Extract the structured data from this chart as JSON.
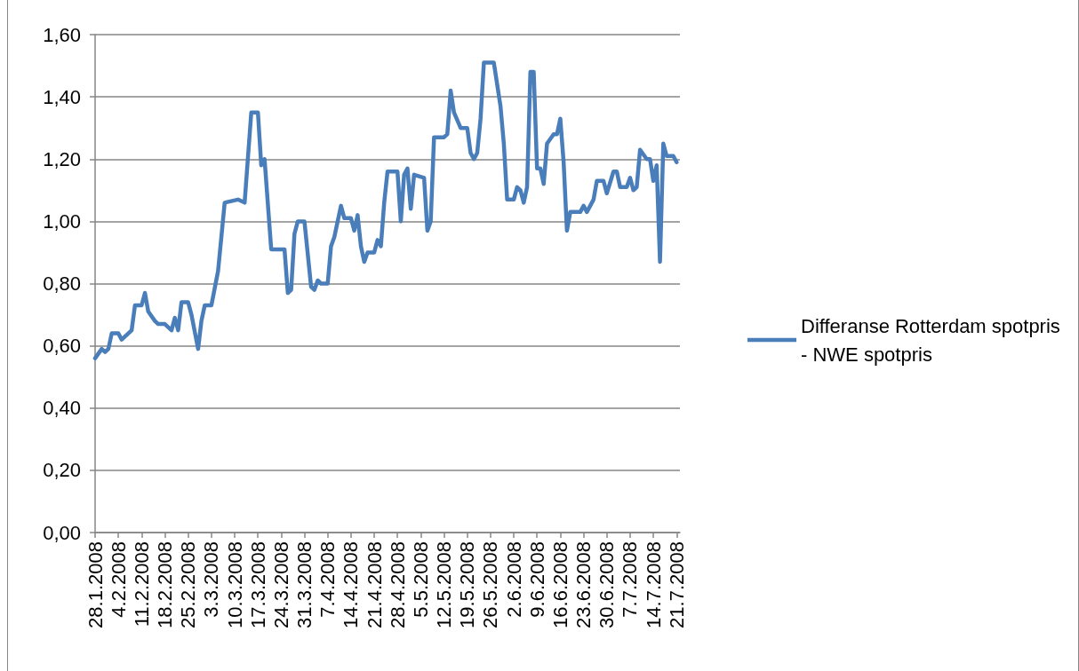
{
  "chart_data": {
    "type": "line",
    "x": [
      "2008-01-28",
      "2008-01-30",
      "2008-01-31",
      "2008-02-01",
      "2008-02-02",
      "2008-02-04",
      "2008-02-05",
      "2008-02-08",
      "2008-02-09",
      "2008-02-11",
      "2008-02-12",
      "2008-02-13",
      "2008-02-15",
      "2008-02-16",
      "2008-02-18",
      "2008-02-20",
      "2008-02-21",
      "2008-02-22",
      "2008-02-23",
      "2008-02-25",
      "2008-02-26",
      "2008-02-28",
      "2008-02-29",
      "2008-03-01",
      "2008-03-03",
      "2008-03-05",
      "2008-03-07",
      "2008-03-11",
      "2008-03-13",
      "2008-03-15",
      "2008-03-17",
      "2008-03-18",
      "2008-03-19",
      "2008-03-21",
      "2008-03-25",
      "2008-03-26",
      "2008-03-27",
      "2008-03-28",
      "2008-03-29",
      "2008-03-31",
      "2008-04-02",
      "2008-04-03",
      "2008-04-04",
      "2008-04-05",
      "2008-04-07",
      "2008-04-08",
      "2008-04-09",
      "2008-04-11",
      "2008-04-12",
      "2008-04-14",
      "2008-04-15",
      "2008-04-16",
      "2008-04-17",
      "2008-04-18",
      "2008-04-19",
      "2008-04-21",
      "2008-04-22",
      "2008-04-23",
      "2008-04-24",
      "2008-04-25",
      "2008-04-28",
      "2008-04-29",
      "2008-04-30",
      "2008-05-01",
      "2008-05-02",
      "2008-05-03",
      "2008-05-06",
      "2008-05-07",
      "2008-05-08",
      "2008-05-09",
      "2008-05-12",
      "2008-05-13",
      "2008-05-14",
      "2008-05-15",
      "2008-05-17",
      "2008-05-19",
      "2008-05-20",
      "2008-05-21",
      "2008-05-22",
      "2008-05-23",
      "2008-05-24",
      "2008-05-25",
      "2008-05-27",
      "2008-05-29",
      "2008-05-30",
      "2008-05-31",
      "2008-06-02",
      "2008-06-03",
      "2008-06-04",
      "2008-06-05",
      "2008-06-06",
      "2008-06-07",
      "2008-06-08",
      "2008-06-09",
      "2008-06-10",
      "2008-06-11",
      "2008-06-12",
      "2008-06-14",
      "2008-06-15",
      "2008-06-16",
      "2008-06-17",
      "2008-06-18",
      "2008-06-19",
      "2008-06-22",
      "2008-06-23",
      "2008-06-24",
      "2008-06-26",
      "2008-06-27",
      "2008-06-29",
      "2008-06-30",
      "2008-07-02",
      "2008-07-03",
      "2008-07-04",
      "2008-07-06",
      "2008-07-07",
      "2008-07-08",
      "2008-07-09",
      "2008-07-10",
      "2008-07-12",
      "2008-07-13",
      "2008-07-14",
      "2008-07-15",
      "2008-07-16",
      "2008-07-17",
      "2008-07-18",
      "2008-07-20",
      "2008-07-21"
    ],
    "series": [
      {
        "name": "Differanse Rotterdam spotpris - NWE spotpris",
        "color": "#4a7ebb",
        "values": [
          0.56,
          0.59,
          0.58,
          0.59,
          0.64,
          0.64,
          0.62,
          0.65,
          0.73,
          0.73,
          0.77,
          0.71,
          0.68,
          0.67,
          0.67,
          0.65,
          0.69,
          0.65,
          0.74,
          0.74,
          0.7,
          0.59,
          0.68,
          0.73,
          0.73,
          0.84,
          1.06,
          1.07,
          1.06,
          1.35,
          1.35,
          1.18,
          1.2,
          0.91,
          0.91,
          0.77,
          0.78,
          0.96,
          1.0,
          1.0,
          0.79,
          0.78,
          0.81,
          0.8,
          0.8,
          0.92,
          0.95,
          1.05,
          1.01,
          1.01,
          0.97,
          1.02,
          0.92,
          0.87,
          0.9,
          0.9,
          0.94,
          0.92,
          1.06,
          1.16,
          1.16,
          1.0,
          1.15,
          1.17,
          1.04,
          1.15,
          1.14,
          0.97,
          1.0,
          1.27,
          1.27,
          1.28,
          1.42,
          1.35,
          1.3,
          1.3,
          1.22,
          1.2,
          1.22,
          1.33,
          1.51,
          1.51,
          1.51,
          1.37,
          1.25,
          1.07,
          1.07,
          1.11,
          1.1,
          1.06,
          1.11,
          1.48,
          1.48,
          1.17,
          1.17,
          1.12,
          1.25,
          1.28,
          1.28,
          1.33,
          1.19,
          0.97,
          1.03,
          1.03,
          1.05,
          1.03,
          1.07,
          1.13,
          1.13,
          1.09,
          1.16,
          1.16,
          1.11,
          1.11,
          1.14,
          1.1,
          1.11,
          1.23,
          1.2,
          1.2,
          1.13,
          1.18,
          0.87,
          1.25,
          1.21,
          1.21,
          1.19
        ]
      }
    ],
    "xlim": [
      "2008-01-28",
      "2008-07-22"
    ],
    "xticks": [
      {
        "value": "2008-01-28",
        "label": "28.1.2008"
      },
      {
        "value": "2008-02-04",
        "label": "4.2.2008"
      },
      {
        "value": "2008-02-11",
        "label": "11.2.2008"
      },
      {
        "value": "2008-02-18",
        "label": "18.2.2008"
      },
      {
        "value": "2008-02-25",
        "label": "25.2.2008"
      },
      {
        "value": "2008-03-03",
        "label": "3.3.2008"
      },
      {
        "value": "2008-03-10",
        "label": "10.3.2008"
      },
      {
        "value": "2008-03-17",
        "label": "17.3.2008"
      },
      {
        "value": "2008-03-24",
        "label": "24.3.2008"
      },
      {
        "value": "2008-03-31",
        "label": "31.3.2008"
      },
      {
        "value": "2008-04-07",
        "label": "7.4.2008"
      },
      {
        "value": "2008-04-14",
        "label": "14.4.2008"
      },
      {
        "value": "2008-04-21",
        "label": "21.4.2008"
      },
      {
        "value": "2008-04-28",
        "label": "28.4.2008"
      },
      {
        "value": "2008-05-05",
        "label": "5.5.2008"
      },
      {
        "value": "2008-05-12",
        "label": "12.5.2008"
      },
      {
        "value": "2008-05-19",
        "label": "19.5.2008"
      },
      {
        "value": "2008-05-26",
        "label": "26.5.2008"
      },
      {
        "value": "2008-06-02",
        "label": "2.6.2008"
      },
      {
        "value": "2008-06-09",
        "label": "9.6.2008"
      },
      {
        "value": "2008-06-16",
        "label": "16.6.2008"
      },
      {
        "value": "2008-06-23",
        "label": "23.6.2008"
      },
      {
        "value": "2008-06-30",
        "label": "30.6.2008"
      },
      {
        "value": "2008-07-07",
        "label": "7.7.2008"
      },
      {
        "value": "2008-07-14",
        "label": "14.7.2008"
      },
      {
        "value": "2008-07-21",
        "label": "21.7.2008"
      }
    ],
    "ylim": [
      0,
      1.6
    ],
    "yticks": [
      {
        "value": 0,
        "label": "0,00"
      },
      {
        "value": 0.2,
        "label": "0,20"
      },
      {
        "value": 0.4,
        "label": "0,40"
      },
      {
        "value": 0.6,
        "label": "0,60"
      },
      {
        "value": 0.8,
        "label": "0,80"
      },
      {
        "value": 1.0,
        "label": "1,00"
      },
      {
        "value": 1.2,
        "label": "1,20"
      },
      {
        "value": 1.4,
        "label": "1,40"
      },
      {
        "value": 1.6,
        "label": "1,60"
      }
    ],
    "grid": "y",
    "legend": "right",
    "marker": "none",
    "line_style": "solid"
  }
}
